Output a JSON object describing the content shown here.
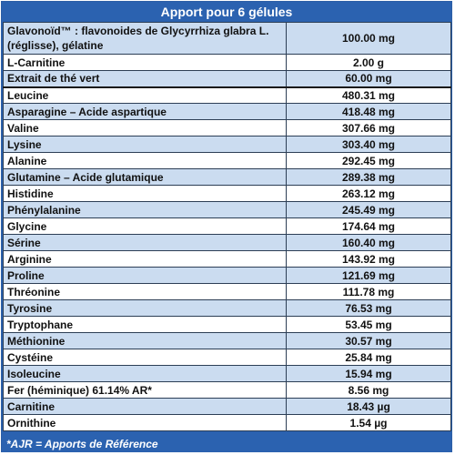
{
  "header": {
    "title": "Apport pour 6 gélules"
  },
  "rows": [
    {
      "name": "Glavonoïd™ : flavonoides de Glycyrrhiza glabra L.(réglisse), gélatine",
      "value": "100.00 mg"
    },
    {
      "name": "L-Carnitine",
      "value": "2.00 g"
    },
    {
      "name": "Extrait de thé vert",
      "value": "60.00 mg"
    },
    {
      "name": "Leucine",
      "value": "480.31 mg"
    },
    {
      "name": "Asparagine – Acide aspartique",
      "value": "418.48 mg"
    },
    {
      "name": "Valine",
      "value": "307.66 mg"
    },
    {
      "name": "Lysine",
      "value": "303.40 mg"
    },
    {
      "name": "Alanine",
      "value": "292.45 mg"
    },
    {
      "name": "Glutamine – Acide glutamique",
      "value": "289.38 mg"
    },
    {
      "name": "Histidine",
      "value": "263.12 mg"
    },
    {
      "name": "Phénylalanine",
      "value": "245.49 mg"
    },
    {
      "name": "Glycine",
      "value": "174.64 mg"
    },
    {
      "name": "Sérine",
      "value": "160.40 mg"
    },
    {
      "name": "Arginine",
      "value": "143.92 mg"
    },
    {
      "name": "Proline",
      "value": "121.69 mg"
    },
    {
      "name": "Thréonine",
      "value": "111.78 mg"
    },
    {
      "name": "Tyrosine",
      "value": "76.53 mg"
    },
    {
      "name": "Tryptophane",
      "value": "53.45 mg"
    },
    {
      "name": "Méthionine",
      "value": "30.57 mg"
    },
    {
      "name": "Cystéine",
      "value": "25.84 mg"
    },
    {
      "name": "Isoleucine",
      "value": "15.94 mg"
    },
    {
      "name": "Fer (héminique) 61.14% AR*",
      "value": "8.56 mg"
    },
    {
      "name": "Carnitine",
      "value": "18.43 µg"
    },
    {
      "name": "Ornithine",
      "value": "1.54 µg"
    }
  ],
  "footer": {
    "note": "*AJR = Apports de Référence"
  },
  "colors": {
    "header_bg": "#2b62b0",
    "row_blue": "#cbdcf0",
    "row_white": "#ffffff"
  }
}
